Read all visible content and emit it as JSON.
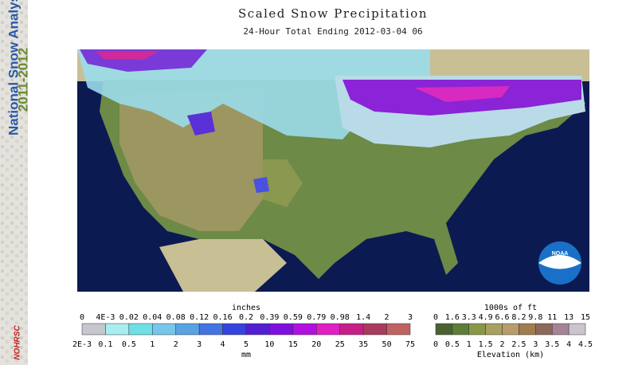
{
  "sidebar": {
    "title": "National Snow Analysis",
    "years": "2011-2012",
    "logo": "NOHRSC"
  },
  "header": {
    "title": "Scaled Snow Precipitation",
    "subtitle": "24-Hour Total Ending 2012-03-04 06"
  },
  "map": {
    "logo": "NOAA"
  },
  "snow_legend": {
    "top_unit": "inches",
    "top_labels": [
      "0",
      "4E-3",
      "0.02",
      "0.04",
      "0.08",
      "0.12",
      "0.16",
      "0.2",
      "0.39",
      "0.59",
      "0.79",
      "0.98",
      "1.4",
      "2",
      "3"
    ],
    "bottom_unit": "mm",
    "bottom_labels": [
      "2E-3",
      "0.1",
      "0.5",
      "1",
      "2",
      "3",
      "4",
      "5",
      "10",
      "15",
      "20",
      "25",
      "35",
      "50",
      "75"
    ],
    "colors": [
      "#c6c6ce",
      "#a8eeee",
      "#6ee0e6",
      "#78c6ea",
      "#5aa2e2",
      "#4474e2",
      "#3444de",
      "#5220d2",
      "#8010de",
      "#b010e0",
      "#e020c4",
      "#c42088",
      "#a83c5c",
      "#c06262"
    ]
  },
  "elevation_legend": {
    "top_unit": "1000s of ft",
    "top_labels": [
      "0",
      "1.6",
      "3.3",
      "4.9",
      "6.6",
      "8.2",
      "9.8",
      "11",
      "13",
      "15"
    ],
    "bottom_title": "Elevation (km)",
    "bottom_labels": [
      "0",
      "0.5",
      "1",
      "1.5",
      "2",
      "2.5",
      "3",
      "3.5",
      "4",
      "4.5"
    ],
    "colors": [
      "#4a6232",
      "#5e7c3a",
      "#889848",
      "#a8a060",
      "#b89c6c",
      "#a07c50",
      "#8c6a5a",
      "#a48496",
      "#ccc4cc"
    ]
  }
}
